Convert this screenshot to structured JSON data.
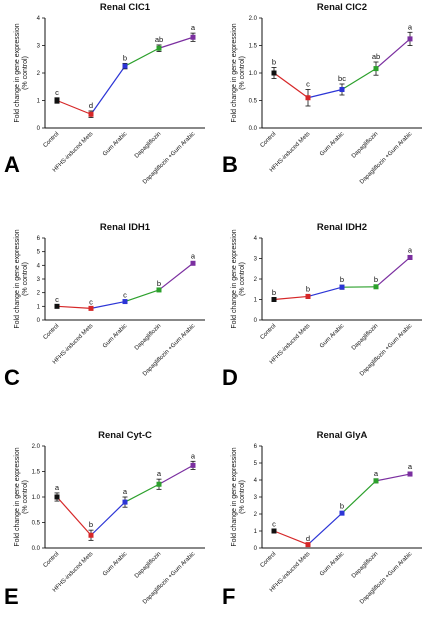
{
  "series_colors": [
    "#d62728",
    "#2c35d6",
    "#2ca02c",
    "#7b2fa0"
  ],
  "chart_data": [
    {
      "panel": "A",
      "type": "line",
      "title": "Renal ClC1",
      "ylabel": [
        "Fold change in gene expression",
        "(% control)"
      ],
      "ylim": [
        0,
        4
      ],
      "yticks": [
        "0",
        "1",
        "2",
        "3",
        "4"
      ],
      "categories": [
        "Control",
        "HFHS-induced Mets",
        "Gum Arabic",
        "Dapagliflozin",
        "Dapagliflozin +Gum Arabic"
      ],
      "values": [
        1.0,
        0.5,
        2.25,
        2.9,
        3.3
      ],
      "errors": [
        0.1,
        0.12,
        0.1,
        0.12,
        0.15
      ],
      "letters": [
        "c",
        "d",
        "b",
        "ab",
        "a"
      ]
    },
    {
      "panel": "B",
      "type": "line",
      "title": "Renal ClC2",
      "ylabel": [
        "Fold change in gene expression",
        "(% control)"
      ],
      "ylim": [
        0,
        2
      ],
      "yticks": [
        "0.0",
        "0.5",
        "1.0",
        "1.5",
        "2.0"
      ],
      "categories": [
        "Control",
        "HFHS-induced Mets",
        "Gum Arabic",
        "Dapagliflozin",
        "Dapagliflozin +Gum Arabic"
      ],
      "values": [
        1.0,
        0.55,
        0.7,
        1.08,
        1.62
      ],
      "errors": [
        0.1,
        0.15,
        0.1,
        0.12,
        0.12
      ],
      "letters": [
        "b",
        "c",
        "bc",
        "ab",
        "a"
      ]
    },
    {
      "panel": "C",
      "type": "line",
      "title": "Renal IDH1",
      "ylabel": [
        "Fold change in gene expression",
        "(% control)"
      ],
      "ylim": [
        0,
        6
      ],
      "yticks": [
        "0",
        "1",
        "2",
        "3",
        "4",
        "5",
        "6"
      ],
      "categories": [
        "Control",
        "HFHS-induced Mets",
        "Gum Arabic",
        "Dapagliflozin",
        "Dapagliflozin +Gum Arabic"
      ],
      "values": [
        1.0,
        0.85,
        1.35,
        2.2,
        4.15
      ],
      "errors": [
        0.1,
        0.08,
        0.08,
        0.08,
        0.12
      ],
      "letters": [
        "c",
        "c",
        "c",
        "b",
        "a"
      ]
    },
    {
      "panel": "D",
      "type": "line",
      "title": "Renal IDH2",
      "ylabel": [
        "Fold change in gene expression",
        "(% control)"
      ],
      "ylim": [
        0,
        4
      ],
      "yticks": [
        "0",
        "1",
        "2",
        "3",
        "4"
      ],
      "categories": [
        "Control",
        "HFHS-induced Mets",
        "Gum Arabic",
        "Dapagliflozin",
        "Dapagliflozin +Gum Arabic"
      ],
      "values": [
        1.0,
        1.15,
        1.6,
        1.62,
        3.05
      ],
      "errors": [
        0.08,
        0.1,
        0.1,
        0.08,
        0.1
      ],
      "letters": [
        "b",
        "b",
        "b",
        "b",
        "a"
      ]
    },
    {
      "panel": "E",
      "type": "line",
      "title": "Renal Cyt-C",
      "ylabel": [
        "Fold change in gene expression",
        "(% control)"
      ],
      "ylim": [
        0,
        2
      ],
      "yticks": [
        "0.0",
        "0.5",
        "1.0",
        "1.5",
        "2.0"
      ],
      "categories": [
        "Control",
        "HFHS-induced Mets",
        "Gum Arabic",
        "Dapagliflozin",
        "Dapagliflozin +Gum Arabic"
      ],
      "values": [
        1.0,
        0.25,
        0.9,
        1.25,
        1.62
      ],
      "errors": [
        0.08,
        0.1,
        0.1,
        0.1,
        0.08
      ],
      "letters": [
        "a",
        "b",
        "a",
        "a",
        "a"
      ]
    },
    {
      "panel": "F",
      "type": "line",
      "title": "Renal GlyA",
      "ylabel": [
        "Fold change in gene expression",
        "(% control)"
      ],
      "ylim": [
        0,
        6
      ],
      "yticks": [
        "0",
        "1",
        "2",
        "3",
        "4",
        "5",
        "6"
      ],
      "categories": [
        "Control",
        "HFHS-induced Mets",
        "Gum Arabic",
        "Dapagliflozin",
        "Dapagliflozin +Gum Arabic"
      ],
      "values": [
        1.0,
        0.2,
        2.05,
        3.95,
        4.35
      ],
      "errors": [
        0.1,
        0.05,
        0.1,
        0.12,
        0.12
      ],
      "letters": [
        "c",
        "d",
        "b",
        "a",
        "a"
      ]
    }
  ]
}
